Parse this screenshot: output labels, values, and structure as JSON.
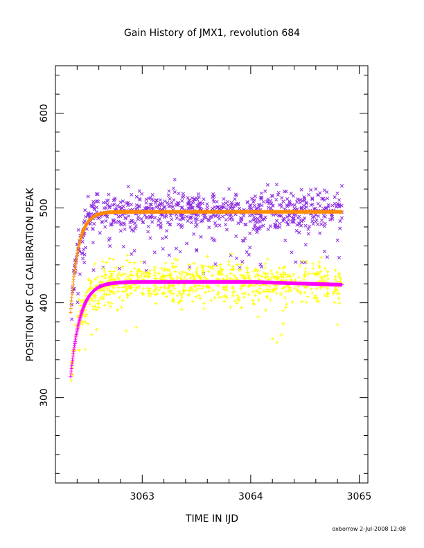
{
  "chart_data": {
    "type": "scatter",
    "title": "Gain History of JMX1, revolution 684",
    "xlabel": "TIME IN IJD",
    "ylabel": "POSITION OF Cd CALIBRATION PEAK",
    "footer": "oxborrow  2-Jul-2008 12:08",
    "xlim": [
      3062.2,
      3065.08
    ],
    "ylim": [
      210,
      650
    ],
    "x_ticks": [
      3063,
      3064,
      3065
    ],
    "x_tick_labels": [
      "3063",
      "3064",
      "3065"
    ],
    "y_ticks": [
      300,
      400,
      500,
      600
    ],
    "y_tick_labels": [
      "300",
      "400",
      "500",
      "600"
    ],
    "x_range_data": [
      3062.34,
      3064.84
    ],
    "legend": "none",
    "grid": false,
    "series": [
      {
        "marker": "x",
        "color": "#8b2be2",
        "kind": "measured",
        "model": {
          "plateau": 496,
          "start": 390,
          "tau": 0.07
        },
        "scatter_sd": 11,
        "dip_fraction": 0.07,
        "points": [
          [
            3062.35,
            398
          ],
          [
            3062.45,
            452
          ],
          [
            3062.55,
            493
          ],
          [
            3062.7,
            502
          ],
          [
            3062.79,
            436
          ],
          [
            3063.0,
            497
          ],
          [
            3063.3,
            530
          ],
          [
            3063.5,
            456
          ],
          [
            3063.8,
            520
          ],
          [
            3063.9,
            437
          ],
          [
            3064.1,
            438
          ],
          [
            3064.3,
            507
          ],
          [
            3064.6,
            520
          ],
          [
            3064.8,
            466
          ]
        ]
      },
      {
        "marker": "+",
        "color": "#ffff00",
        "kind": "measured",
        "model": {
          "plateau": 422,
          "start": 322,
          "tau": 0.09,
          "late_drift": -3
        },
        "scatter_sd": 11,
        "dip_fraction": 0.02,
        "points": [
          [
            3062.35,
            318
          ],
          [
            3062.42,
            350
          ],
          [
            3062.5,
            378
          ],
          [
            3062.6,
            395
          ],
          [
            3063.0,
            410
          ],
          [
            3063.4,
            432
          ],
          [
            3063.8,
            440
          ],
          [
            3064.2,
            362
          ],
          [
            3064.3,
            378
          ],
          [
            3064.6,
            430
          ],
          [
            3064.8,
            377
          ]
        ]
      },
      {
        "marker": "+",
        "color": "#ff8c00",
        "kind": "fit",
        "model": {
          "plateau": 496,
          "start": 390,
          "tau": 0.07
        }
      },
      {
        "marker": "+",
        "color": "#ff00ff",
        "kind": "fit",
        "model": {
          "plateau": 422,
          "start": 322,
          "tau": 0.09,
          "late_drift": -3
        }
      }
    ]
  }
}
